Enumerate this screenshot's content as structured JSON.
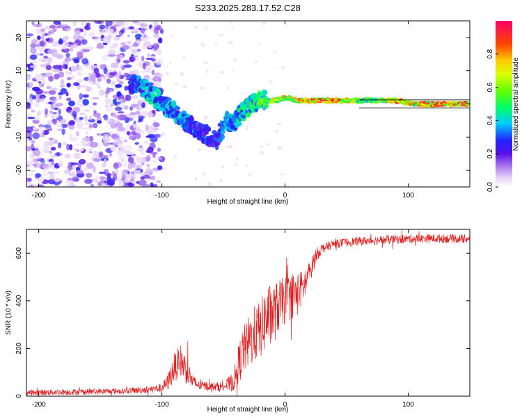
{
  "title": "S233.2025.283.17.52.C28",
  "colors": {
    "snr_line": "#e02020",
    "frame": "#000000",
    "background": "#ffffff"
  },
  "chart_data": [
    {
      "type": "heatmap",
      "name": "spectrogram",
      "xlabel": "Height of straight line (km)",
      "ylabel": "Frequency (Hz)",
      "xlim": [
        -210,
        150
      ],
      "ylim": [
        -25,
        25
      ],
      "xticks": [
        -200,
        -100,
        0,
        100
      ],
      "yticks": [
        -20,
        -10,
        0,
        10,
        20
      ],
      "xtick_labels": [
        "-200",
        "-100",
        "0",
        "100"
      ],
      "ytick_labels": [
        "-20",
        "-10",
        "0",
        "10",
        "20"
      ],
      "colorbar": {
        "label": "Normalized spectral amplitude",
        "range": [
          0,
          1
        ],
        "ticks": [
          0.0,
          0.2,
          0.4,
          0.6,
          0.8
        ],
        "tick_labels": [
          "0.0",
          "0.2",
          "0.4",
          "0.6",
          "0.8"
        ]
      },
      "ridge": {
        "x": [
          -125,
          -115,
          -105,
          -95,
          -85,
          -75,
          -65,
          -55,
          -48,
          -42,
          -36,
          -30,
          -22,
          -15,
          -8,
          0,
          10,
          20,
          30,
          45,
          60,
          75,
          90,
          105,
          120,
          150
        ],
        "y": [
          6,
          5,
          2,
          -1,
          -4,
          -7,
          -9,
          -11,
          -5,
          -6,
          -3,
          -1,
          1,
          1,
          1,
          2,
          1,
          1,
          1,
          1,
          1,
          1,
          1,
          0,
          0,
          0
        ],
        "amplitude": [
          0.3,
          0.4,
          0.45,
          0.4,
          0.4,
          0.35,
          0.3,
          0.3,
          0.4,
          0.4,
          0.45,
          0.5,
          0.55,
          0.6,
          0.7,
          0.75,
          0.85,
          0.9,
          0.9,
          0.9,
          0.6,
          0.6,
          0.9,
          0.8,
          0.9,
          0.9
        ]
      },
      "noise_region_x": [
        -210,
        -100
      ]
    },
    {
      "type": "line",
      "name": "snr",
      "xlabel": "Height of straight line (km)",
      "ylabel": "SNR (10 * v/v)",
      "xlim": [
        -210,
        150
      ],
      "ylim": [
        0,
        700
      ],
      "xticks": [
        -200,
        -100,
        0,
        100
      ],
      "yticks": [
        0,
        200,
        400,
        600
      ],
      "xtick_labels": [
        "-200",
        "-100",
        "0",
        "100"
      ],
      "ytick_labels": [
        "0",
        "200",
        "400",
        "600"
      ],
      "envelope": {
        "x": [
          -210,
          -170,
          -130,
          -110,
          -100,
          -95,
          -90,
          -85,
          -80,
          -75,
          -70,
          -60,
          -50,
          -42,
          -38,
          -35,
          -30,
          -25,
          -20,
          -15,
          -10,
          -5,
          0,
          5,
          10,
          15,
          20,
          25,
          30,
          40,
          60,
          80,
          100,
          120,
          150
        ],
        "mean": [
          15,
          18,
          22,
          28,
          35,
          60,
          120,
          150,
          110,
          60,
          45,
          40,
          40,
          60,
          130,
          180,
          220,
          260,
          280,
          330,
          340,
          380,
          400,
          420,
          430,
          460,
          520,
          590,
          620,
          640,
          650,
          655,
          660,
          662,
          660
        ],
        "spread": [
          12,
          12,
          12,
          15,
          18,
          35,
          60,
          70,
          60,
          30,
          20,
          18,
          20,
          40,
          80,
          100,
          110,
          120,
          120,
          140,
          130,
          110,
          100,
          100,
          90,
          70,
          50,
          30,
          20,
          18,
          18,
          18,
          18,
          18,
          18
        ]
      }
    }
  ]
}
